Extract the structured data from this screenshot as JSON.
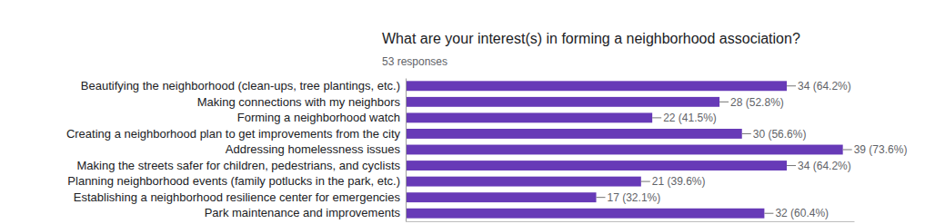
{
  "chart_data": {
    "type": "bar",
    "orientation": "horizontal",
    "title": "What are your interest(s) in forming a neighborhood association?",
    "subtitle": "53 responses",
    "categories": [
      "Beautifying the neighborhood (clean-ups, tree plantings, etc.)",
      "Making connections with my neighbors",
      "Forming a neighborhood watch",
      "Creating a neighborhood plan to get improvements from the city",
      "Addressing homelessness issues",
      "Making the streets safer for children, pedestrians, and cyclists",
      "Planning neighborhood events (family potlucks in the park, etc.)",
      "Establishing a neighborhood resilience center for emergencies",
      "Park maintenance and improvements"
    ],
    "values": [
      34,
      28,
      22,
      30,
      39,
      34,
      21,
      17,
      32
    ],
    "value_labels": [
      "34 (64.2%)",
      "28 (52.8%)",
      "22 (41.5%)",
      "30 (56.6%)",
      "39 (73.6%)",
      "34 (64.2%)",
      "21 (39.6%)",
      "17 (32.1%)",
      "32 (60.4%)"
    ],
    "color": "#673ab7",
    "xlim": [
      0,
      40
    ],
    "data_labels": true,
    "tick_labels": "y",
    "grid": false
  }
}
